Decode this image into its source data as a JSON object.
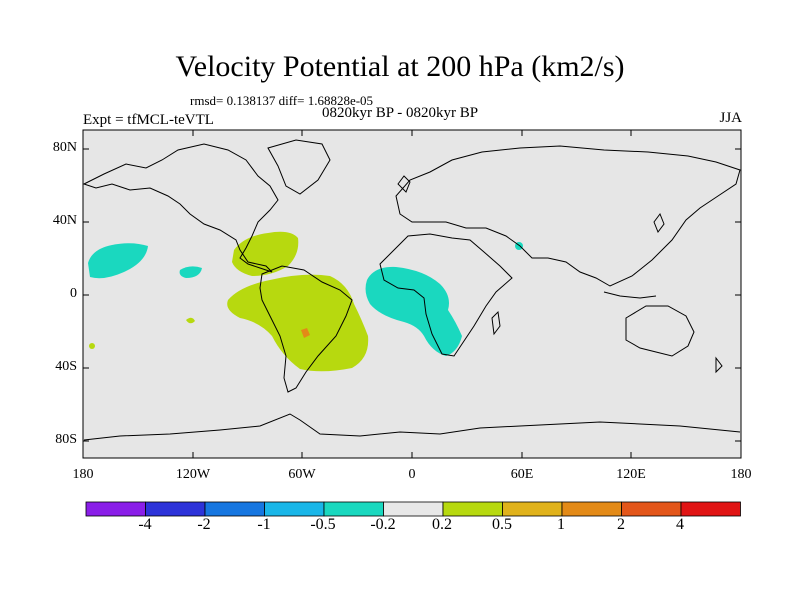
{
  "title": "Velocity Potential at 200 hPa (km2/s)",
  "stats_line": "rmsd= 0.138137 diff= 1.68828e-05",
  "experiment": "Expt = tfMCL-teVTL",
  "period": "0820kyr BP - 0820kyr BP",
  "season": "JJA",
  "y_axis_labels": [
    "80N",
    "40N",
    "0",
    "40S",
    "80S"
  ],
  "x_axis_labels": [
    "180",
    "120W",
    "60W",
    "0",
    "60E",
    "120E",
    "180"
  ],
  "colorbar": {
    "colors": [
      "#8a1ee8",
      "#2d33d9",
      "#1676e0",
      "#19b6e8",
      "#1ad8bf",
      "#e8e8e8",
      "#b7d90f",
      "#e0b21b",
      "#e38a17",
      "#e3561a",
      "#e01414"
    ],
    "labels": [
      "-4",
      "-2",
      "-1",
      "-0.5",
      "-0.2",
      "0.2",
      "0.5",
      "1",
      "2",
      "4"
    ]
  },
  "colors": {
    "background": "#e6e6e6",
    "negative_fill": "#1ad8bf",
    "positive_fill": "#b7d90f",
    "max_fill": "#e38a17"
  }
}
